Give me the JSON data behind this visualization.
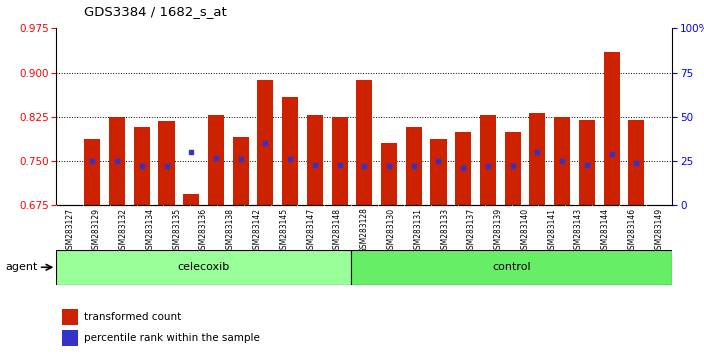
{
  "title": "GDS3384 / 1682_s_at",
  "samples": [
    "GSM283127",
    "GSM283129",
    "GSM283132",
    "GSM283134",
    "GSM283135",
    "GSM283136",
    "GSM283138",
    "GSM283142",
    "GSM283145",
    "GSM283147",
    "GSM283148",
    "GSM283128",
    "GSM283130",
    "GSM283131",
    "GSM283133",
    "GSM283137",
    "GSM283139",
    "GSM283140",
    "GSM283141",
    "GSM283143",
    "GSM283144",
    "GSM283146",
    "GSM283149"
  ],
  "transformed_count": [
    0.787,
    0.825,
    0.808,
    0.818,
    0.695,
    0.828,
    0.79,
    0.888,
    0.858,
    0.828,
    0.825,
    0.888,
    0.78,
    0.808,
    0.788,
    0.8,
    0.828,
    0.8,
    0.832,
    0.825,
    0.82,
    0.935,
    0.82
  ],
  "percentile_rank_pct": [
    25.0,
    25.0,
    22.0,
    22.0,
    30.0,
    27.0,
    26.0,
    35.0,
    26.0,
    23.0,
    23.0,
    22.0,
    22.0,
    22.0,
    25.0,
    21.0,
    22.0,
    22.0,
    30.0,
    25.0,
    23.0,
    29.0,
    24.0
  ],
  "celecoxib_count": 11,
  "control_count": 12,
  "ylim_left": [
    0.675,
    0.975
  ],
  "ylim_right": [
    0,
    100
  ],
  "yticks_left": [
    0.675,
    0.75,
    0.825,
    0.9,
    0.975
  ],
  "yticks_right": [
    0,
    25,
    50,
    75,
    100
  ],
  "bar_color": "#cc2200",
  "dot_color": "#3333cc",
  "celecoxib_color": "#99ff99",
  "control_color": "#66ee66",
  "agent_label": "agent",
  "celecoxib_label": "celecoxib",
  "control_label": "control",
  "legend_transformed": "transformed count",
  "legend_percentile": "percentile rank within the sample"
}
